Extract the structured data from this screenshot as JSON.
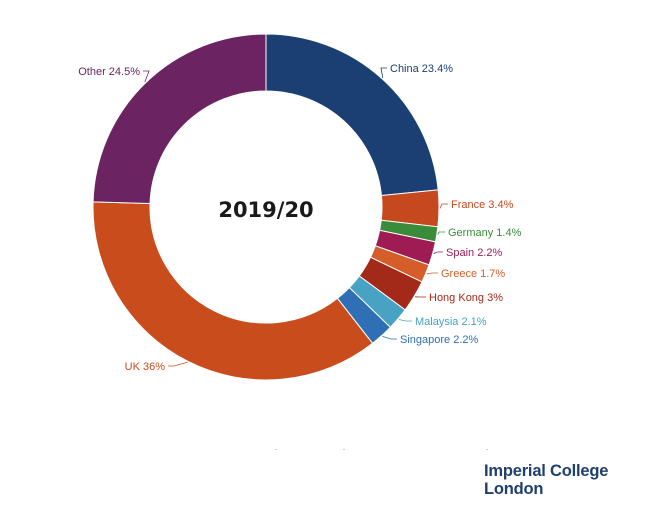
{
  "chart_data": {
    "type": "pie",
    "donut": true,
    "title": "2019/20",
    "legend": "none",
    "slices": [
      {
        "label": "China",
        "value": 23.4,
        "color": "#1b3f73"
      },
      {
        "label": "France",
        "value": 3.4,
        "color": "#c5481e"
      },
      {
        "label": "Germany",
        "value": 1.4,
        "color": "#3a8c3a"
      },
      {
        "label": "Spain",
        "value": 2.2,
        "color": "#9e1b54"
      },
      {
        "label": "Greece",
        "value": 1.7,
        "color": "#d45d2a"
      },
      {
        "label": "Hong Kong",
        "value": 3,
        "color": "#a32a18"
      },
      {
        "label": "Malaysia",
        "value": 2.1,
        "color": "#47a2c4"
      },
      {
        "label": "Singapore",
        "value": 2.2,
        "color": "#2f6fb5"
      },
      {
        "label": "UK",
        "value": 36,
        "color": "#c94c1c"
      },
      {
        "label": "Other",
        "value": 24.5,
        "color": "#6b2461"
      }
    ],
    "data_labels": [
      "China 23.4%",
      "France 3.4%",
      "Germany 1.4%",
      "Spain 2.2%",
      "Greece 1.7%",
      "Hong Kong 3%",
      "Malaysia 2.1%",
      "Singapore 2.2%",
      "UK 36%",
      "Other 24.5%"
    ]
  },
  "branding": {
    "line1": "Imperial College",
    "line2": "London"
  }
}
